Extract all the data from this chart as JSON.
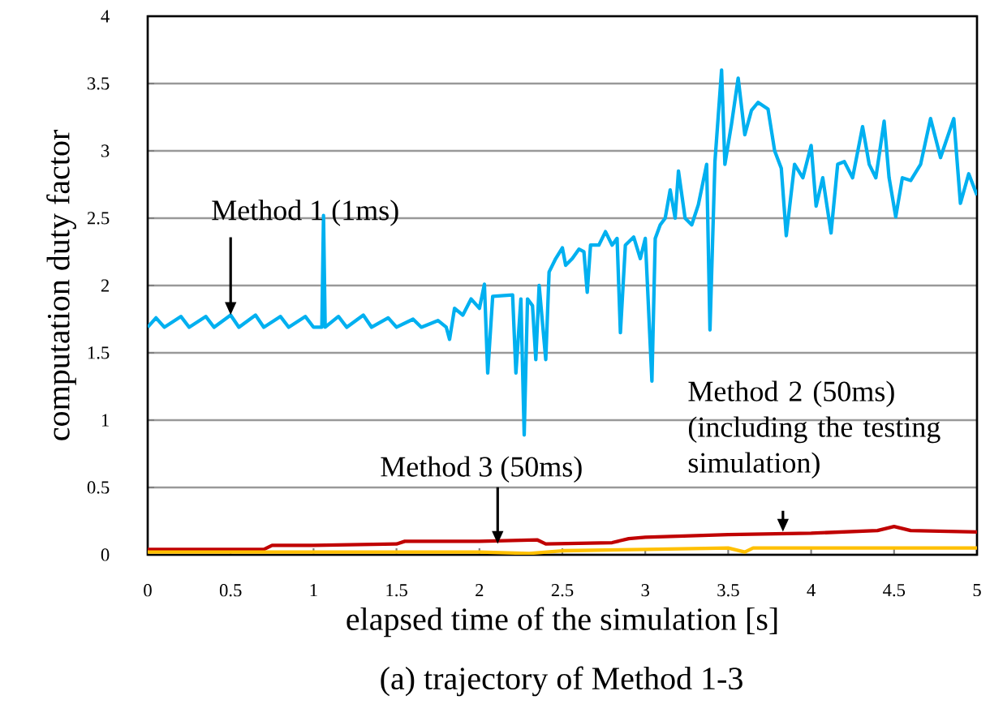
{
  "chart_data": {
    "type": "line",
    "xlabel": "elapsed time of the simulation [s]",
    "ylabel": "computation duty factor",
    "xlim": [
      0,
      5
    ],
    "ylim": [
      0,
      4
    ],
    "xticks": [
      0,
      0.5,
      1,
      1.5,
      2,
      2.5,
      3,
      3.5,
      4,
      4.5,
      5
    ],
    "yticks": [
      0,
      0.5,
      1,
      1.5,
      2,
      2.5,
      3,
      3.5,
      4
    ],
    "grid": "y",
    "marker": "none",
    "line_style": "solid",
    "series": [
      {
        "color": "#00b0f0",
        "x": [
          0,
          0.05,
          0.1,
          0.2,
          0.25,
          0.35,
          0.4,
          0.5,
          0.55,
          0.65,
          0.7,
          0.8,
          0.85,
          0.95,
          1.0,
          1.05,
          1.06,
          1.07,
          1.15,
          1.2,
          1.3,
          1.35,
          1.45,
          1.5,
          1.6,
          1.65,
          1.75,
          1.8,
          1.82,
          1.85,
          1.9,
          1.95,
          2.0,
          2.03,
          2.05,
          2.08,
          2.2,
          2.22,
          2.25,
          2.27,
          2.29,
          2.32,
          2.34,
          2.36,
          2.4,
          2.42,
          2.46,
          2.5,
          2.52,
          2.56,
          2.6,
          2.63,
          2.65,
          2.67,
          2.72,
          2.76,
          2.8,
          2.83,
          2.85,
          2.88,
          2.93,
          2.97,
          3.0,
          3.04,
          3.06,
          3.09,
          3.12,
          3.15,
          3.18,
          3.2,
          3.24,
          3.28,
          3.32,
          3.37,
          3.39,
          3.42,
          3.46,
          3.48,
          3.52,
          3.56,
          3.6,
          3.64,
          3.68,
          3.74,
          3.78,
          3.82,
          3.85,
          3.9,
          3.95,
          4.0,
          4.03,
          4.07,
          4.12,
          4.16,
          4.2,
          4.25,
          4.31,
          4.35,
          4.39,
          4.44,
          4.47,
          4.51,
          4.55,
          4.6,
          4.66,
          4.72,
          4.78,
          4.86,
          4.9,
          4.95,
          5.0
        ],
        "values": [
          1.69,
          1.76,
          1.69,
          1.77,
          1.69,
          1.77,
          1.69,
          1.78,
          1.69,
          1.78,
          1.69,
          1.77,
          1.69,
          1.77,
          1.69,
          1.69,
          2.52,
          1.69,
          1.77,
          1.69,
          1.78,
          1.69,
          1.76,
          1.69,
          1.75,
          1.69,
          1.74,
          1.69,
          1.6,
          1.83,
          1.78,
          1.9,
          1.83,
          2.01,
          1.35,
          1.92,
          1.93,
          1.35,
          1.9,
          0.89,
          1.9,
          1.85,
          1.45,
          2.0,
          1.45,
          2.1,
          2.2,
          2.28,
          2.15,
          2.2,
          2.27,
          2.25,
          1.95,
          2.3,
          2.3,
          2.4,
          2.3,
          2.35,
          1.65,
          2.3,
          2.36,
          2.2,
          2.35,
          1.29,
          2.35,
          2.45,
          2.5,
          2.71,
          2.5,
          2.85,
          2.5,
          2.45,
          2.6,
          2.9,
          1.67,
          2.92,
          3.6,
          2.9,
          3.2,
          3.54,
          3.12,
          3.3,
          3.36,
          3.31,
          3.0,
          2.87,
          2.37,
          2.9,
          2.8,
          3.04,
          2.59,
          2.8,
          2.39,
          2.9,
          2.92,
          2.8,
          3.18,
          2.9,
          2.8,
          3.22,
          2.8,
          2.51,
          2.8,
          2.78,
          2.9,
          3.24,
          2.95,
          3.24,
          2.61,
          2.83,
          2.67
        ]
      },
      {
        "color": "#c00000",
        "x": [
          0,
          0.7,
          0.75,
          1.0,
          1.5,
          1.55,
          2.0,
          2.35,
          2.4,
          2.8,
          2.9,
          3.0,
          3.5,
          4.0,
          4.4,
          4.5,
          4.6,
          5.0
        ],
        "values": [
          0.04,
          0.04,
          0.07,
          0.07,
          0.08,
          0.1,
          0.1,
          0.11,
          0.08,
          0.09,
          0.12,
          0.13,
          0.15,
          0.16,
          0.18,
          0.21,
          0.18,
          0.17
        ]
      },
      {
        "color": "#ffc000",
        "x": [
          0,
          1.0,
          2.0,
          2.3,
          2.5,
          3.0,
          3.5,
          3.6,
          3.65,
          4.0,
          5.0
        ],
        "values": [
          0.02,
          0.02,
          0.02,
          0.01,
          0.03,
          0.04,
          0.05,
          0.02,
          0.05,
          0.05,
          0.05
        ]
      }
    ],
    "annotations": [
      {
        "text": "Method 1 (1ms)",
        "x": 0.5,
        "y": 1.78
      },
      {
        "text": "Method 3 (50ms)",
        "x": 2.11,
        "y": 0.08
      },
      {
        "text": "Method 2 (50ms) (including the testing simulation)",
        "x": 3.83,
        "y": 0.17
      },
      "(a) trajectory of  Method 1-3"
    ]
  }
}
